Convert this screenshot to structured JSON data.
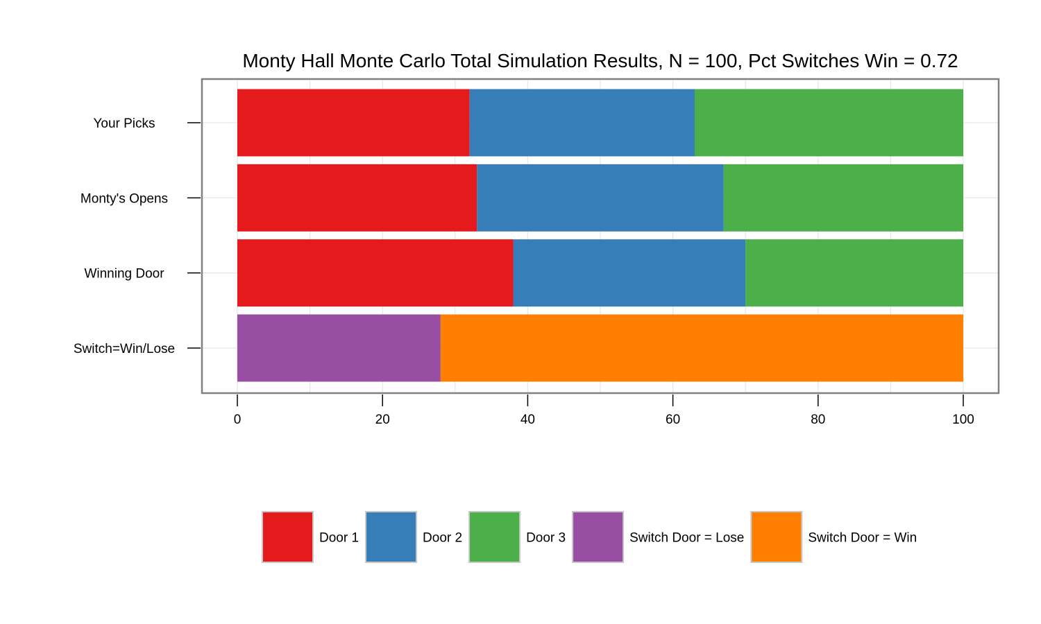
{
  "chart_data": {
    "type": "bar",
    "orientation": "horizontal",
    "stacked": true,
    "title": "Monty Hall Monte Carlo Total Simulation Results, N = 100, Pct Switches Win = 0.72",
    "categories": [
      "Your Picks",
      "Monty's Opens",
      "Winning Door",
      "Switch=Win/Lose"
    ],
    "xlim": [
      0,
      100
    ],
    "xticks": [
      0,
      20,
      40,
      60,
      80,
      100
    ],
    "grid": true,
    "legend_position": "bottom",
    "series": [
      {
        "name": "Door 1",
        "color": "#E41A1C",
        "values": [
          32,
          33,
          38,
          0
        ]
      },
      {
        "name": "Door 2",
        "color": "#377EB8",
        "values": [
          31,
          34,
          32,
          0
        ]
      },
      {
        "name": "Door 3",
        "color": "#4DAF4A",
        "values": [
          37,
          33,
          30,
          0
        ]
      },
      {
        "name": "Switch Door = Lose",
        "color": "#984EA3",
        "values": [
          0,
          0,
          0,
          28
        ]
      },
      {
        "name": "Switch Door = Win",
        "color": "#FF7F00",
        "values": [
          0,
          0,
          0,
          72
        ]
      }
    ]
  }
}
